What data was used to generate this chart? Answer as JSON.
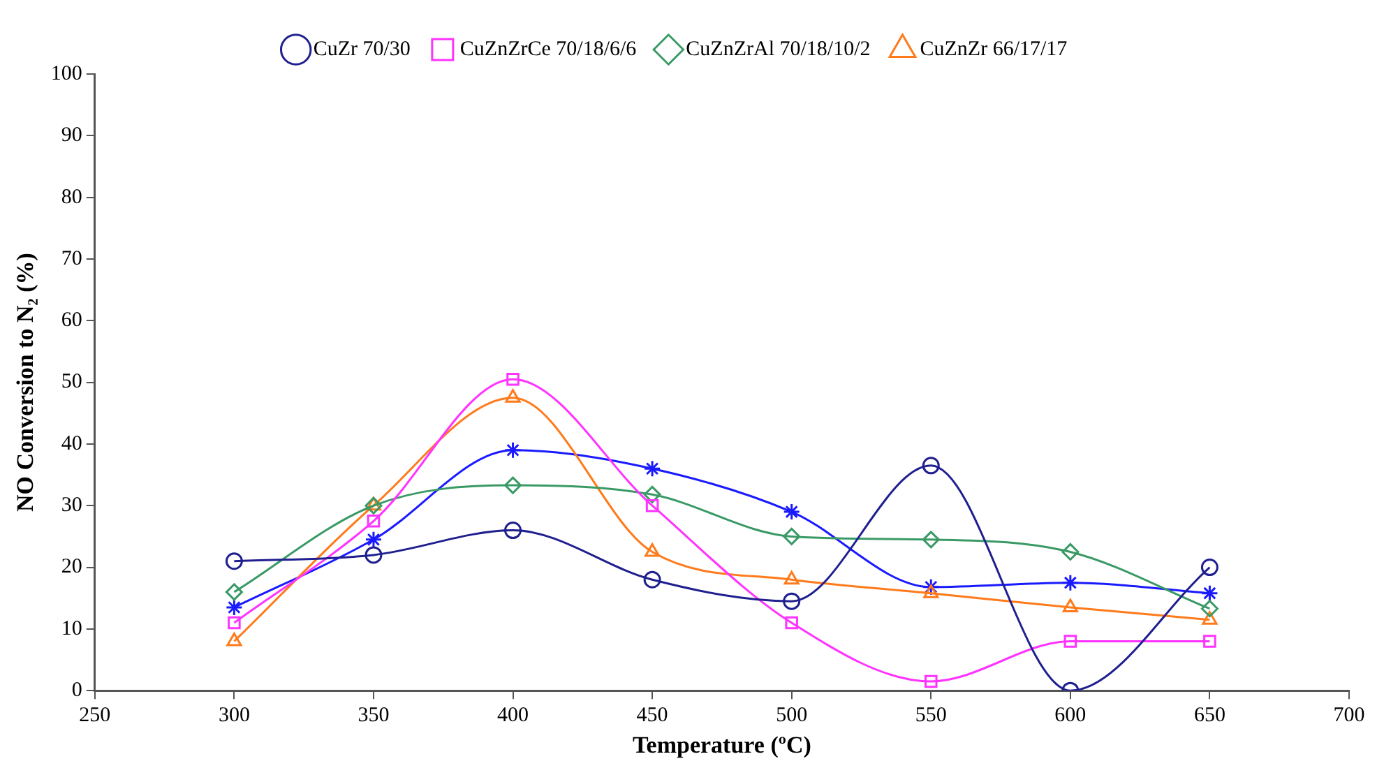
{
  "chart_data": {
    "type": "line",
    "xlabel": "Temperature (ºC)",
    "ylabel": "NO Conversion to N₂ (%)",
    "x": [
      300,
      350,
      400,
      450,
      500,
      550,
      600,
      650
    ],
    "xlim": [
      250,
      700
    ],
    "xticks": [
      250,
      300,
      350,
      400,
      450,
      500,
      550,
      600,
      650,
      700
    ],
    "ylim": [
      0,
      100
    ],
    "yticks": [
      0,
      10,
      20,
      30,
      40,
      50,
      60,
      70,
      80,
      90,
      100
    ],
    "grid": false,
    "legend": "top",
    "line_style": "solid",
    "series": [
      {
        "name": "CuZr 70/30",
        "color": "#1f1f8f",
        "marker": "circle",
        "values": [
          21,
          22,
          26,
          18,
          14.5,
          36.5,
          0,
          20
        ]
      },
      {
        "name": "CuZnZrCe 70/18/6/6",
        "color": "#ff33ff",
        "marker": "square",
        "values": [
          11,
          27.5,
          50.5,
          30,
          11,
          1.5,
          8,
          8
        ]
      },
      {
        "name": "CuZnZrAl 70/18/10/2",
        "color": "#3a9a66",
        "marker": "diamond",
        "values": [
          16,
          30,
          33.3,
          31.8,
          25,
          24.5,
          22.5,
          13.3
        ]
      },
      {
        "name": "CuZnZr 66/17/17",
        "color": "#ff7a1a",
        "marker": "triangle",
        "values": [
          8,
          30,
          47.5,
          22.5,
          18,
          15.8,
          13.5,
          11.5
        ]
      },
      {
        "color": "#1a1aff",
        "marker": "cross",
        "values": [
          13.5,
          24.5,
          39,
          36,
          29,
          16.8,
          17.5,
          15.8
        ]
      }
    ]
  }
}
